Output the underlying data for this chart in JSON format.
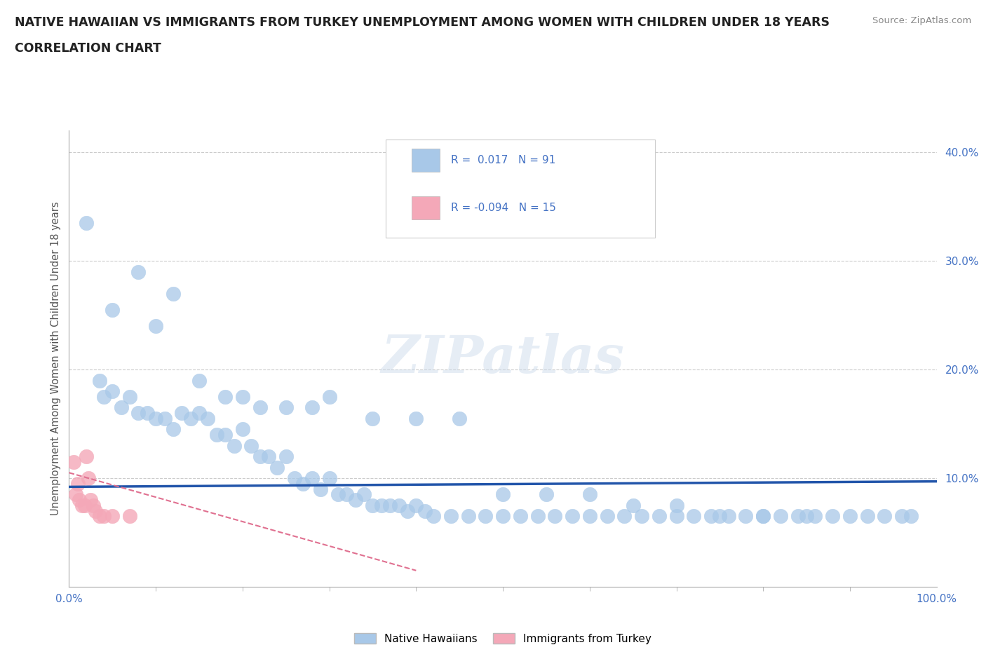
{
  "title_line1": "NATIVE HAWAIIAN VS IMMIGRANTS FROM TURKEY UNEMPLOYMENT AMONG WOMEN WITH CHILDREN UNDER 18 YEARS",
  "title_line2": "CORRELATION CHART",
  "source_text": "Source: ZipAtlas.com",
  "ylabel": "Unemployment Among Women with Children Under 18 years",
  "xlim": [
    0,
    1.0
  ],
  "ylim": [
    0,
    0.42
  ],
  "ytick_labels": [
    "10.0%",
    "20.0%",
    "30.0%",
    "40.0%"
  ],
  "ytick_vals": [
    0.1,
    0.2,
    0.3,
    0.4
  ],
  "xtick_labels": [
    "0.0%",
    "100.0%"
  ],
  "xtick_vals": [
    0,
    1.0
  ],
  "r_hawaiian": 0.017,
  "n_hawaiian": 91,
  "r_turkey": -0.094,
  "n_turkey": 15,
  "color_hawaiian": "#A8C8E8",
  "color_turkey": "#F4A8B8",
  "trendline_hawaiian_color": "#2255AA",
  "trendline_turkey_color": "#E07090",
  "watermark": "ZIPatlas",
  "hawaiian_x": [
    0.02,
    0.035,
    0.04,
    0.05,
    0.06,
    0.07,
    0.08,
    0.09,
    0.1,
    0.11,
    0.12,
    0.13,
    0.14,
    0.15,
    0.16,
    0.17,
    0.18,
    0.19,
    0.2,
    0.21,
    0.22,
    0.23,
    0.24,
    0.25,
    0.26,
    0.27,
    0.28,
    0.29,
    0.3,
    0.31,
    0.32,
    0.33,
    0.34,
    0.35,
    0.36,
    0.37,
    0.38,
    0.39,
    0.4,
    0.41,
    0.42,
    0.44,
    0.46,
    0.48,
    0.5,
    0.52,
    0.54,
    0.56,
    0.58,
    0.6,
    0.62,
    0.64,
    0.66,
    0.68,
    0.7,
    0.72,
    0.74,
    0.76,
    0.78,
    0.8,
    0.82,
    0.84,
    0.86,
    0.88,
    0.9,
    0.92,
    0.94,
    0.96,
    0.05,
    0.08,
    0.1,
    0.12,
    0.15,
    0.18,
    0.2,
    0.22,
    0.25,
    0.28,
    0.3,
    0.35,
    0.4,
    0.45,
    0.5,
    0.55,
    0.6,
    0.65,
    0.7,
    0.75,
    0.8,
    0.85,
    0.97
  ],
  "hawaiian_y": [
    0.335,
    0.19,
    0.175,
    0.18,
    0.165,
    0.175,
    0.16,
    0.16,
    0.155,
    0.155,
    0.145,
    0.16,
    0.155,
    0.16,
    0.155,
    0.14,
    0.14,
    0.13,
    0.145,
    0.13,
    0.12,
    0.12,
    0.11,
    0.12,
    0.1,
    0.095,
    0.1,
    0.09,
    0.1,
    0.085,
    0.085,
    0.08,
    0.085,
    0.075,
    0.075,
    0.075,
    0.075,
    0.07,
    0.075,
    0.07,
    0.065,
    0.065,
    0.065,
    0.065,
    0.065,
    0.065,
    0.065,
    0.065,
    0.065,
    0.065,
    0.065,
    0.065,
    0.065,
    0.065,
    0.065,
    0.065,
    0.065,
    0.065,
    0.065,
    0.065,
    0.065,
    0.065,
    0.065,
    0.065,
    0.065,
    0.065,
    0.065,
    0.065,
    0.255,
    0.29,
    0.24,
    0.27,
    0.19,
    0.175,
    0.175,
    0.165,
    0.165,
    0.165,
    0.175,
    0.155,
    0.155,
    0.155,
    0.085,
    0.085,
    0.085,
    0.075,
    0.075,
    0.065,
    0.065,
    0.065,
    0.065
  ],
  "turkey_x": [
    0.005,
    0.008,
    0.01,
    0.012,
    0.015,
    0.018,
    0.02,
    0.022,
    0.025,
    0.028,
    0.03,
    0.035,
    0.04,
    0.05,
    0.07
  ],
  "turkey_y": [
    0.115,
    0.085,
    0.095,
    0.08,
    0.075,
    0.075,
    0.12,
    0.1,
    0.08,
    0.075,
    0.07,
    0.065,
    0.065,
    0.065,
    0.065
  ],
  "trendline_h_x0": 0.0,
  "trendline_h_x1": 1.0,
  "trendline_h_y0": 0.092,
  "trendline_h_y1": 0.097,
  "trendline_t_x0": 0.0,
  "trendline_t_x1": 0.4,
  "trendline_t_y0": 0.105,
  "trendline_t_y1": 0.015
}
